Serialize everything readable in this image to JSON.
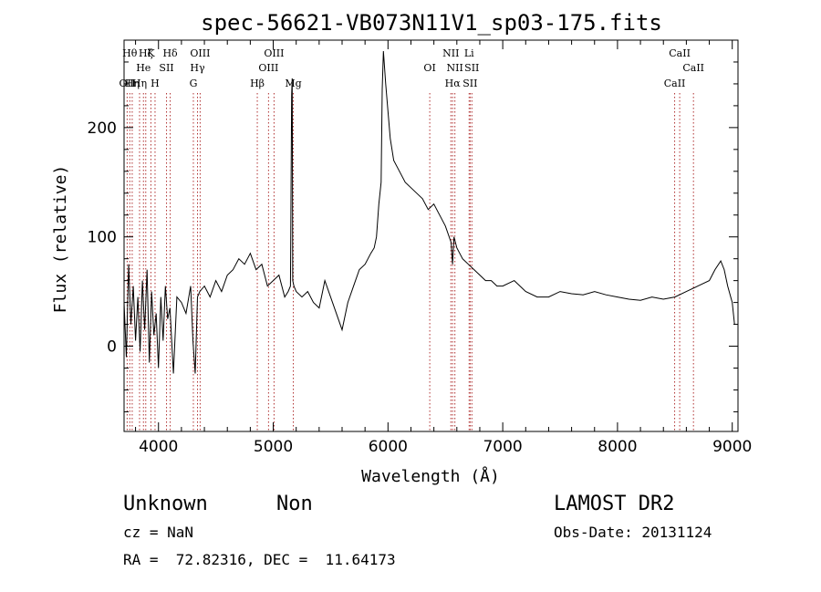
{
  "chart_data": {
    "type": "line",
    "title": "spec-56621-VB073N11V1_sp03-175.fits",
    "xlabel": "Wavelength (Å)",
    "ylabel": "Flux (relative)",
    "xlim": [
      3700,
      9050
    ],
    "ylim": [
      -78,
      280
    ],
    "x_ticks": [
      4000,
      5000,
      6000,
      7000,
      8000,
      9000
    ],
    "y_ticks": [
      0,
      100,
      200
    ],
    "grid": false,
    "series": [
      {
        "color": "#000000",
        "x": [
          3700,
          3720,
          3740,
          3760,
          3780,
          3800,
          3820,
          3840,
          3860,
          3880,
          3900,
          3920,
          3940,
          3960,
          3980,
          4000,
          4020,
          4040,
          4060,
          4080,
          4100,
          4130,
          4160,
          4200,
          4240,
          4280,
          4300,
          4320,
          4340,
          4360,
          4400,
          4450,
          4500,
          4550,
          4600,
          4650,
          4700,
          4750,
          4800,
          4850,
          4900,
          4950,
          5000,
          5050,
          5100,
          5130,
          5150,
          5160,
          5165,
          5170,
          5180,
          5200,
          5250,
          5300,
          5350,
          5400,
          5450,
          5500,
          5550,
          5600,
          5650,
          5700,
          5750,
          5800,
          5850,
          5880,
          5900,
          5920,
          5940,
          5950,
          5960,
          5980,
          6000,
          6020,
          6050,
          6100,
          6150,
          6200,
          6250,
          6300,
          6350,
          6400,
          6450,
          6500,
          6550,
          6563,
          6575,
          6600,
          6650,
          6700,
          6750,
          6800,
          6850,
          6900,
          6950,
          7000,
          7100,
          7200,
          7300,
          7400,
          7500,
          7600,
          7700,
          7800,
          7900,
          8000,
          8100,
          8200,
          8300,
          8400,
          8500,
          8600,
          8700,
          8800,
          8850,
          8900,
          8930,
          8960,
          9000,
          9020
        ],
        "y": [
          40,
          -10,
          75,
          20,
          55,
          5,
          45,
          -5,
          60,
          15,
          70,
          -15,
          50,
          10,
          30,
          -20,
          45,
          5,
          55,
          25,
          35,
          -25,
          45,
          40,
          30,
          55,
          5,
          -25,
          45,
          50,
          55,
          45,
          60,
          50,
          65,
          70,
          80,
          75,
          85,
          70,
          75,
          55,
          60,
          65,
          45,
          50,
          55,
          230,
          245,
          60,
          55,
          50,
          45,
          50,
          40,
          35,
          60,
          45,
          30,
          15,
          40,
          55,
          70,
          75,
          85,
          90,
          100,
          130,
          150,
          235,
          270,
          240,
          215,
          190,
          170,
          160,
          150,
          145,
          140,
          135,
          125,
          130,
          120,
          110,
          95,
          75,
          100,
          90,
          80,
          75,
          70,
          65,
          60,
          60,
          55,
          55,
          60,
          50,
          45,
          45,
          50,
          48,
          47,
          50,
          47,
          45,
          43,
          42,
          45,
          43,
          45,
          50,
          55,
          60,
          70,
          78,
          70,
          55,
          40,
          20
        ]
      }
    ],
    "line_marks": [
      {
        "wl": 3727,
        "label": "OII",
        "row": 2
      },
      {
        "wl": 3750,
        "label": "Hθ",
        "row": 0
      },
      {
        "wl": 3771,
        "label": "Hη",
        "row": 2
      },
      {
        "wl": 3835,
        "label": "Hη",
        "row": 2
      },
      {
        "wl": 3869,
        "label": "He",
        "row": 1
      },
      {
        "wl": 3889,
        "label": "Hζ",
        "row": 0
      },
      {
        "wl": 3934,
        "label": "K",
        "row": 0
      },
      {
        "wl": 3970,
        "label": "H",
        "row": 2
      },
      {
        "wl": 4070,
        "label": "SII",
        "row": 1
      },
      {
        "wl": 4102,
        "label": "Hδ",
        "row": 0
      },
      {
        "wl": 4304,
        "label": "G",
        "row": 2
      },
      {
        "wl": 4340,
        "label": "Hγ",
        "row": 1
      },
      {
        "wl": 4363,
        "label": "OIII",
        "row": 0
      },
      {
        "wl": 4861,
        "label": "Hβ",
        "row": 2
      },
      {
        "wl": 4959,
        "label": "OIII",
        "row": 1
      },
      {
        "wl": 5007,
        "label": "OIII",
        "row": 0
      },
      {
        "wl": 5175,
        "label": "Mg",
        "row": 2
      },
      {
        "wl": 6364,
        "label": "OI",
        "row": 1
      },
      {
        "wl": 6548,
        "label": "NII",
        "row": 0
      },
      {
        "wl": 6563,
        "label": "Hα",
        "row": 2
      },
      {
        "wl": 6583,
        "label": "NII",
        "row": 1
      },
      {
        "wl": 6707,
        "label": "Li",
        "row": 0
      },
      {
        "wl": 6716,
        "label": "SII",
        "row": 2
      },
      {
        "wl": 6731,
        "label": "SII",
        "row": 1
      },
      {
        "wl": 8498,
        "label": "CaII",
        "row": 2
      },
      {
        "wl": 8542,
        "label": "CaII",
        "row": 0
      },
      {
        "wl": 8662,
        "label": "CaII",
        "row": 1
      }
    ]
  },
  "info": {
    "class": "Unknown",
    "subclass": "Non",
    "survey": "LAMOST DR2",
    "cz": "cz = NaN",
    "obs_date": "Obs-Date: 20131124",
    "radec": "RA =  72.82316, DEC =  11.64173"
  }
}
